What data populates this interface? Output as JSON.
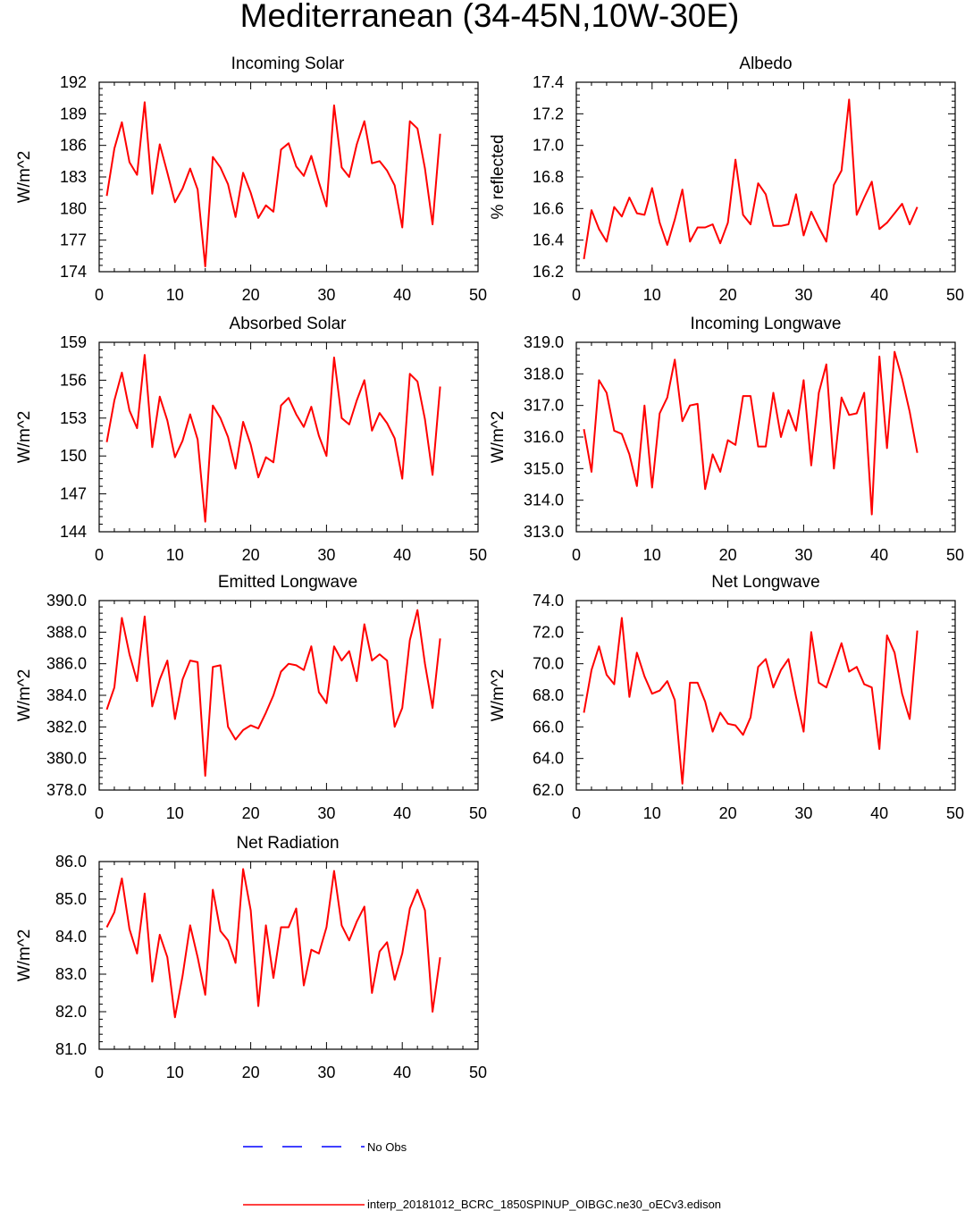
{
  "figure_title": "Mediterranean (34-45N,10W-30E)",
  "legend": {
    "obs_label": "No Obs",
    "obs_color": "#0000ff",
    "model_label": "interp_20181012_BCRC_1850SPINUP_OIBGC.ne30_oECv3.edison",
    "model_color": "#ff0000"
  },
  "chart_data": [
    {
      "type": "line",
      "title": "Incoming Solar",
      "ylabel": "W/m^2",
      "xlim": [
        0,
        50
      ],
      "ylim": [
        174,
        192
      ],
      "xticks": [
        "0",
        "10",
        "20",
        "30",
        "40",
        "50"
      ],
      "yticks": [
        "174",
        "177",
        "180",
        "183",
        "186",
        "189",
        "192"
      ],
      "series": [
        {
          "color": "#ff0000",
          "x": [
            1,
            2,
            3,
            4,
            5,
            6,
            7,
            8,
            9,
            10,
            11,
            12,
            13,
            14,
            15,
            16,
            17,
            18,
            19,
            20,
            21,
            22,
            23,
            24,
            25,
            26,
            27,
            28,
            29,
            30,
            31,
            32,
            33,
            34,
            35,
            36,
            37,
            38,
            39,
            40,
            41,
            42,
            43,
            44,
            45
          ],
          "y": [
            181.2,
            185.7,
            188.2,
            184.4,
            183.2,
            190.1,
            181.4,
            186.1,
            183.4,
            180.6,
            181.9,
            183.8,
            181.8,
            174.5,
            184.9,
            183.9,
            182.3,
            179.2,
            183.4,
            181.5,
            179.1,
            180.3,
            179.7,
            185.6,
            186.2,
            184.0,
            183.1,
            185.0,
            182.5,
            180.2,
            189.8,
            183.9,
            183.0,
            186.1,
            188.3,
            184.3,
            184.5,
            183.6,
            182.2,
            178.2,
            188.3,
            187.6,
            183.8,
            178.5,
            187.1
          ]
        }
      ]
    },
    {
      "type": "line",
      "title": "Albedo",
      "ylabel": "% reflected",
      "xlim": [
        0,
        50
      ],
      "ylim": [
        16.2,
        17.4
      ],
      "xticks": [
        "0",
        "10",
        "20",
        "30",
        "40",
        "50"
      ],
      "yticks": [
        "16.2",
        "16.4",
        "16.6",
        "16.8",
        "17.0",
        "17.2",
        "17.4"
      ],
      "series": [
        {
          "color": "#ff0000",
          "x": [
            1,
            2,
            3,
            4,
            5,
            6,
            7,
            8,
            9,
            10,
            11,
            12,
            13,
            14,
            15,
            16,
            17,
            18,
            19,
            20,
            21,
            22,
            23,
            24,
            25,
            26,
            27,
            28,
            29,
            30,
            31,
            32,
            33,
            34,
            35,
            36,
            37,
            38,
            39,
            40,
            41,
            42,
            43,
            44,
            45
          ],
          "y": [
            16.28,
            16.59,
            16.47,
            16.39,
            16.61,
            16.55,
            16.67,
            16.57,
            16.56,
            16.73,
            16.51,
            16.37,
            16.53,
            16.72,
            16.39,
            16.48,
            16.48,
            16.5,
            16.38,
            16.51,
            16.91,
            16.56,
            16.5,
            16.76,
            16.69,
            16.49,
            16.49,
            16.5,
            16.69,
            16.43,
            16.58,
            16.48,
            16.39,
            16.75,
            16.84,
            17.29,
            16.56,
            16.67,
            16.77,
            16.47,
            16.51,
            16.57,
            16.63,
            16.5,
            16.61
          ]
        }
      ]
    },
    {
      "type": "line",
      "title": "Absorbed Solar",
      "ylabel": "W/m^2",
      "xlim": [
        0,
        50
      ],
      "ylim": [
        144,
        159
      ],
      "xticks": [
        "0",
        "10",
        "20",
        "30",
        "40",
        "50"
      ],
      "yticks": [
        "144",
        "147",
        "150",
        "153",
        "156",
        "159"
      ],
      "series": [
        {
          "color": "#ff0000",
          "x": [
            1,
            2,
            3,
            4,
            5,
            6,
            7,
            8,
            9,
            10,
            11,
            12,
            13,
            14,
            15,
            16,
            17,
            18,
            19,
            20,
            21,
            22,
            23,
            24,
            25,
            26,
            27,
            28,
            29,
            30,
            31,
            32,
            33,
            34,
            35,
            36,
            37,
            38,
            39,
            40,
            41,
            42,
            43,
            44,
            45
          ],
          "y": [
            151.1,
            154.4,
            156.6,
            153.6,
            152.2,
            158.0,
            150.7,
            154.7,
            152.8,
            149.9,
            151.2,
            153.3,
            151.3,
            144.8,
            154.0,
            153.0,
            151.5,
            149.0,
            152.7,
            150.9,
            148.3,
            149.9,
            149.5,
            154.0,
            154.6,
            153.3,
            152.3,
            153.9,
            151.6,
            150.0,
            157.8,
            153.0,
            152.5,
            154.4,
            156.0,
            152.0,
            153.4,
            152.6,
            151.4,
            148.2,
            156.5,
            155.9,
            152.9,
            148.5,
            155.5
          ]
        }
      ]
    },
    {
      "type": "line",
      "title": "Incoming Longwave",
      "ylabel": "W/m^2",
      "xlim": [
        0,
        50
      ],
      "ylim": [
        313.0,
        319.0
      ],
      "xticks": [
        "0",
        "10",
        "20",
        "30",
        "40",
        "50"
      ],
      "yticks": [
        "313.0",
        "314.0",
        "315.0",
        "316.0",
        "317.0",
        "318.0",
        "319.0"
      ],
      "series": [
        {
          "color": "#ff0000",
          "x": [
            1,
            2,
            3,
            4,
            5,
            6,
            7,
            8,
            9,
            10,
            11,
            12,
            13,
            14,
            15,
            16,
            17,
            18,
            19,
            20,
            21,
            22,
            23,
            24,
            25,
            26,
            27,
            28,
            29,
            30,
            31,
            32,
            33,
            34,
            35,
            36,
            37,
            38,
            39,
            40,
            41,
            42,
            43,
            44,
            45
          ],
          "y": [
            316.25,
            314.9,
            317.8,
            317.4,
            316.2,
            316.1,
            315.45,
            314.45,
            317.0,
            314.4,
            316.75,
            317.25,
            318.45,
            316.5,
            317.0,
            317.05,
            314.35,
            315.45,
            314.9,
            315.9,
            315.75,
            317.3,
            317.3,
            315.7,
            315.7,
            317.4,
            316.0,
            316.85,
            316.2,
            317.8,
            315.1,
            317.4,
            318.3,
            315.0,
            317.25,
            316.7,
            316.75,
            317.4,
            313.55,
            318.55,
            315.65,
            318.7,
            317.85,
            316.8,
            315.5
          ]
        }
      ]
    },
    {
      "type": "line",
      "title": "Emitted Longwave",
      "ylabel": "W/m^2",
      "xlim": [
        0,
        50
      ],
      "ylim": [
        378.0,
        390.0
      ],
      "xticks": [
        "0",
        "10",
        "20",
        "30",
        "40",
        "50"
      ],
      "yticks": [
        "378.0",
        "380.0",
        "382.0",
        "384.0",
        "386.0",
        "388.0",
        "390.0"
      ],
      "series": [
        {
          "color": "#ff0000",
          "x": [
            1,
            2,
            3,
            4,
            5,
            6,
            7,
            8,
            9,
            10,
            11,
            12,
            13,
            14,
            15,
            16,
            17,
            18,
            19,
            20,
            21,
            22,
            23,
            24,
            25,
            26,
            27,
            28,
            29,
            30,
            31,
            32,
            33,
            34,
            35,
            36,
            37,
            38,
            39,
            40,
            41,
            42,
            43,
            44,
            45
          ],
          "y": [
            383.1,
            384.5,
            388.9,
            386.6,
            384.9,
            389.0,
            383.3,
            385.0,
            386.2,
            382.5,
            385.0,
            386.2,
            386.1,
            378.9,
            385.8,
            385.9,
            382.0,
            381.2,
            381.8,
            382.1,
            381.9,
            382.9,
            384.0,
            385.5,
            386.0,
            385.9,
            385.6,
            387.1,
            384.2,
            383.5,
            387.1,
            386.2,
            386.8,
            384.9,
            388.5,
            386.2,
            386.6,
            386.2,
            382.0,
            383.2,
            387.5,
            389.4,
            386.0,
            383.2,
            387.6
          ]
        }
      ]
    },
    {
      "type": "line",
      "title": "Net Longwave",
      "ylabel": "W/m^2",
      "xlim": [
        0,
        50
      ],
      "ylim": [
        62.0,
        74.0
      ],
      "xticks": [
        "0",
        "10",
        "20",
        "30",
        "40",
        "50"
      ],
      "yticks": [
        "62.0",
        "64.0",
        "66.0",
        "68.0",
        "70.0",
        "72.0",
        "74.0"
      ],
      "series": [
        {
          "color": "#ff0000",
          "x": [
            1,
            2,
            3,
            4,
            5,
            6,
            7,
            8,
            9,
            10,
            11,
            12,
            13,
            14,
            15,
            16,
            17,
            18,
            19,
            20,
            21,
            22,
            23,
            24,
            25,
            26,
            27,
            28,
            29,
            30,
            31,
            32,
            33,
            34,
            35,
            36,
            37,
            38,
            39,
            40,
            41,
            42,
            43,
            44,
            45
          ],
          "y": [
            66.9,
            69.6,
            71.1,
            69.3,
            68.7,
            72.9,
            67.9,
            70.7,
            69.2,
            68.1,
            68.3,
            68.9,
            67.7,
            62.4,
            68.8,
            68.8,
            67.6,
            65.7,
            66.9,
            66.2,
            66.1,
            65.5,
            66.6,
            69.8,
            70.3,
            68.5,
            69.6,
            70.3,
            67.9,
            65.7,
            72.0,
            68.8,
            68.5,
            69.9,
            71.3,
            69.5,
            69.8,
            68.7,
            68.5,
            64.6,
            71.8,
            70.7,
            68.1,
            66.5,
            72.1
          ]
        }
      ]
    },
    {
      "type": "line",
      "title": "Net Radiation",
      "ylabel": "W/m^2",
      "xlim": [
        0,
        50
      ],
      "ylim": [
        81.0,
        86.0
      ],
      "xticks": [
        "0",
        "10",
        "20",
        "30",
        "40",
        "50"
      ],
      "yticks": [
        "81.0",
        "82.0",
        "83.0",
        "84.0",
        "85.0",
        "86.0"
      ],
      "series": [
        {
          "color": "#ff0000",
          "x": [
            1,
            2,
            3,
            4,
            5,
            6,
            7,
            8,
            9,
            10,
            11,
            12,
            13,
            14,
            15,
            16,
            17,
            18,
            19,
            20,
            21,
            22,
            23,
            24,
            25,
            26,
            27,
            28,
            29,
            30,
            31,
            32,
            33,
            34,
            35,
            36,
            37,
            38,
            39,
            40,
            41,
            42,
            43,
            44,
            45
          ],
          "y": [
            84.25,
            84.65,
            85.55,
            84.2,
            83.55,
            85.15,
            82.8,
            84.05,
            83.45,
            81.85,
            82.95,
            84.3,
            83.45,
            82.45,
            85.25,
            84.15,
            83.9,
            83.3,
            85.8,
            84.7,
            82.15,
            84.3,
            82.9,
            84.25,
            84.25,
            84.75,
            82.7,
            83.65,
            83.55,
            84.25,
            85.75,
            84.3,
            83.9,
            84.4,
            84.8,
            82.5,
            83.6,
            83.85,
            82.85,
            83.55,
            84.75,
            85.25,
            84.7,
            82.0,
            83.45
          ]
        }
      ]
    }
  ]
}
